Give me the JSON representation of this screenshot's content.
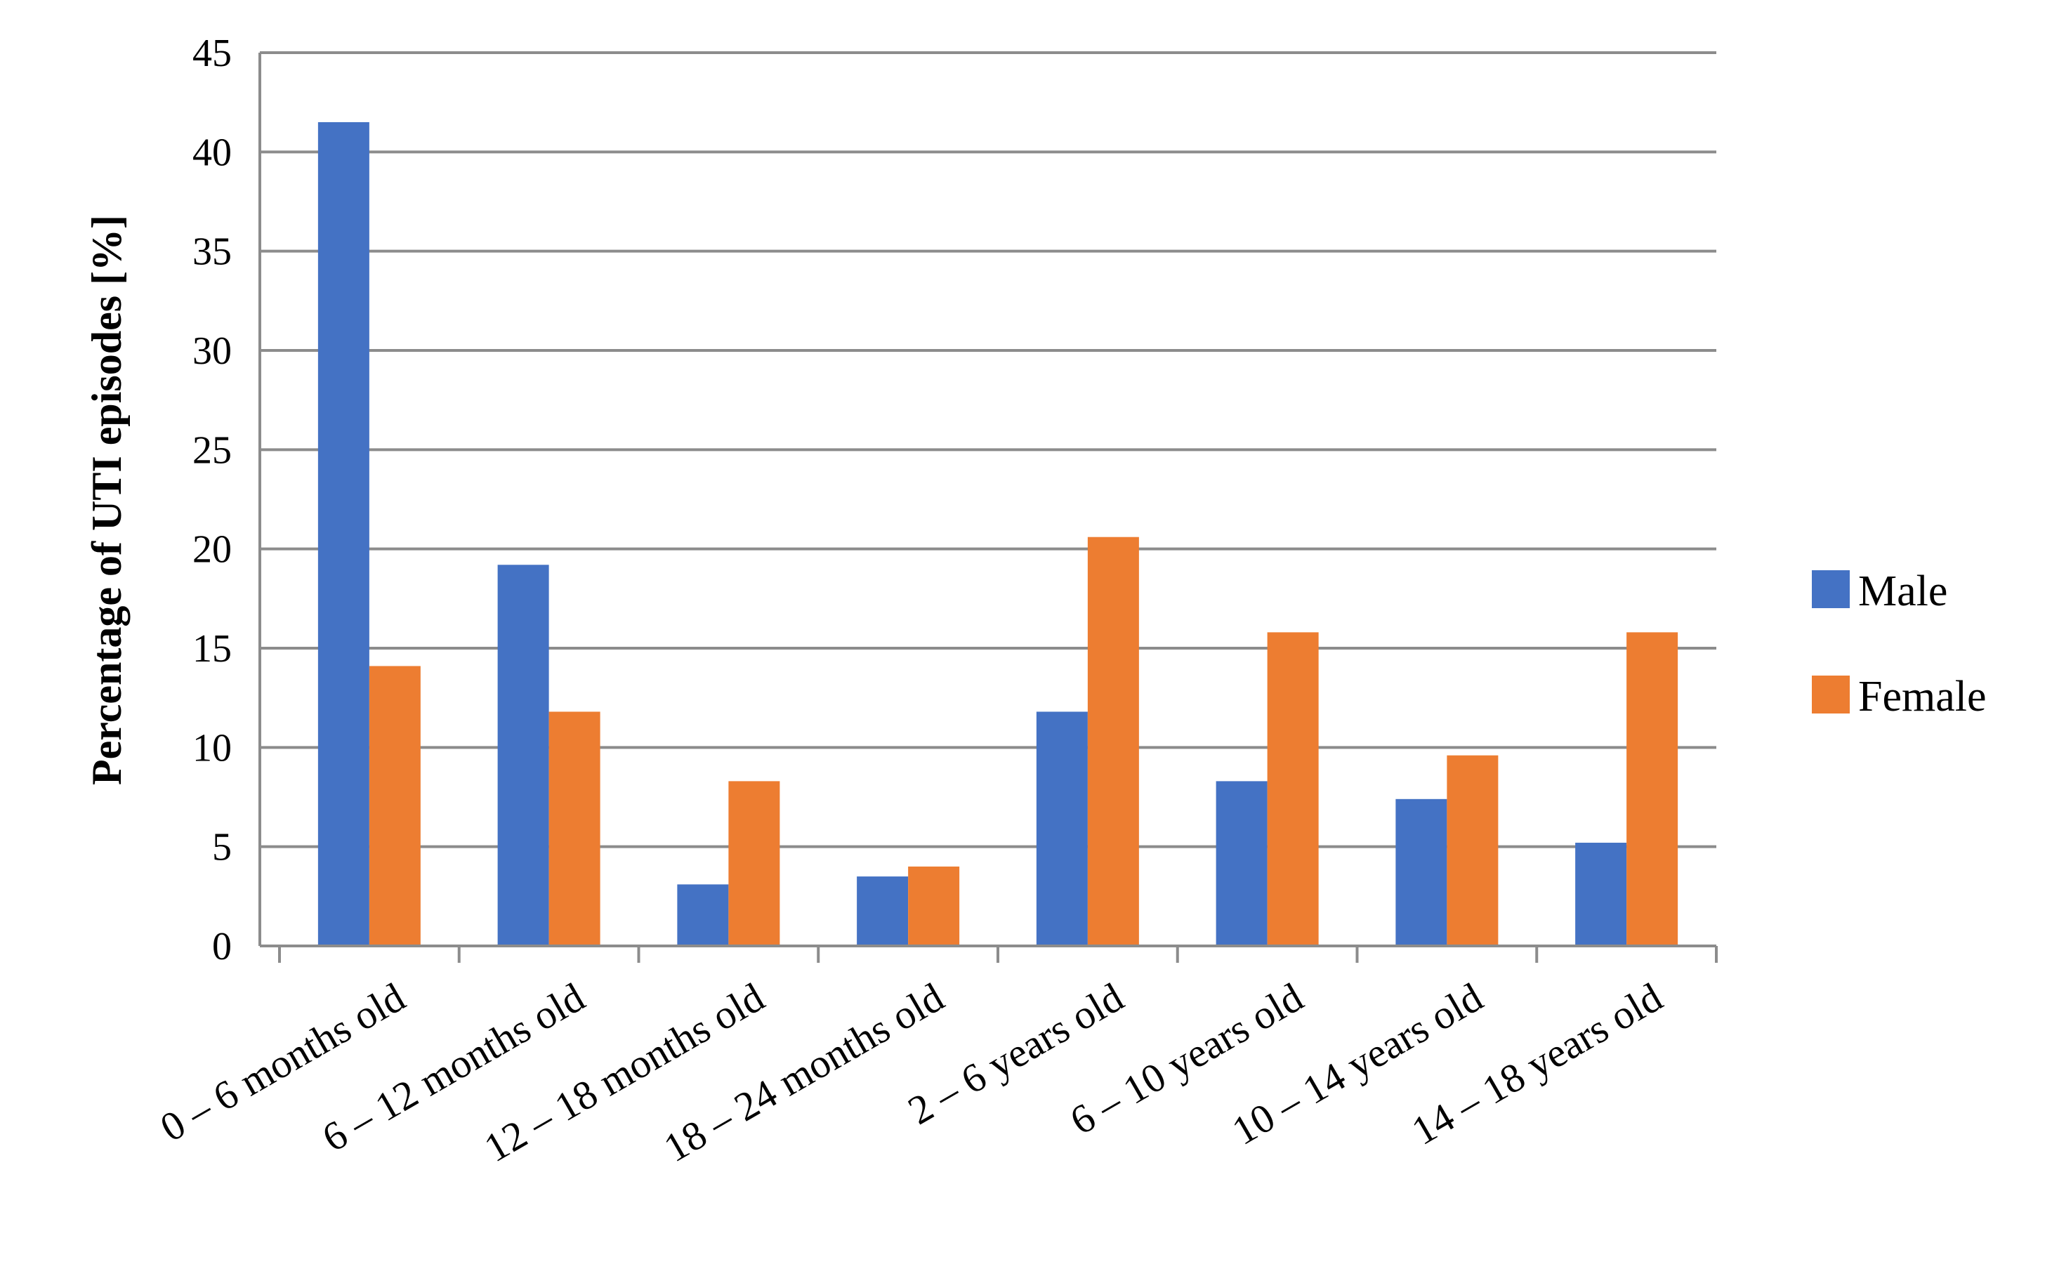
{
  "chart_data": {
    "type": "bar",
    "title": "",
    "xlabel": "",
    "ylabel": "Percentage of UTI episodes [%]",
    "ylim": [
      0,
      45
    ],
    "yticks": [
      0,
      5,
      10,
      15,
      20,
      25,
      30,
      35,
      40,
      45
    ],
    "grid": true,
    "legend_position": "right",
    "categories": [
      "0 – 6 months old",
      "6 – 12 months old",
      "12 – 18 months old",
      "18 – 24 months old",
      "2 – 6 years old",
      "6 – 10 years old",
      "10 – 14 years old",
      "14 – 18 years old"
    ],
    "series": [
      {
        "name": "Male",
        "color": "#4472C4",
        "values": [
          41.5,
          19.2,
          3.1,
          3.5,
          11.8,
          8.3,
          7.4,
          5.2
        ]
      },
      {
        "name": "Female",
        "color": "#ED7D31",
        "values": [
          14.1,
          11.8,
          8.3,
          4.0,
          20.6,
          15.8,
          9.6,
          15.8
        ]
      }
    ]
  }
}
